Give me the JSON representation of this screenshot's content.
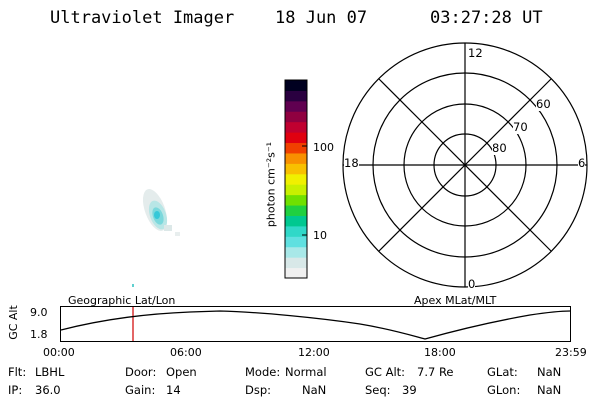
{
  "header": {
    "title": "Ultraviolet Imager",
    "date": "18 Jun 07",
    "time": "03:27:28 UT"
  },
  "colorbar": {
    "unit_label": "photon cm⁻²s⁻¹",
    "ticks": [
      "100",
      "10"
    ],
    "colors": [
      "#f0f0f0",
      "#d8e8e8",
      "#a8e8e8",
      "#60e0e0",
      "#30d8c8",
      "#00c890",
      "#20d040",
      "#70e000",
      "#c8f000",
      "#f0f000",
      "#f8c000",
      "#f89000",
      "#f04000",
      "#e00010",
      "#c00030",
      "#900040",
      "#600050",
      "#2a0040",
      "#000020"
    ]
  },
  "polar": {
    "mlt_labels": [
      "12",
      "18",
      "6",
      "0"
    ],
    "lat_labels": [
      "60",
      "70",
      "80"
    ]
  },
  "track": {
    "left_label": "Geographic Lat/Lon",
    "right_label": "Apex MLat/MLT",
    "y_axis_label": "GC Alt",
    "y_ticks": [
      "9.0",
      "1.8"
    ],
    "time_ticks": [
      "00:00",
      "06:00",
      "12:00",
      "18:00",
      "23:59"
    ]
  },
  "status": {
    "row1": [
      {
        "key": "Flt:",
        "value": "LBHL"
      },
      {
        "key": "Door:",
        "value": "Open"
      },
      {
        "key": "Mode:",
        "value": "Normal"
      },
      {
        "key": "GC Alt:",
        "value": "7.7 Re"
      },
      {
        "key": "GLat:",
        "value": "NaN"
      }
    ],
    "row2": [
      {
        "key": "IP:",
        "value": "36.0"
      },
      {
        "key": "Gain:",
        "value": "14"
      },
      {
        "key": "Dsp:",
        "value": "NaN"
      },
      {
        "key": "Seq:",
        "value": "39"
      },
      {
        "key": "GLon:",
        "value": "NaN"
      }
    ]
  }
}
